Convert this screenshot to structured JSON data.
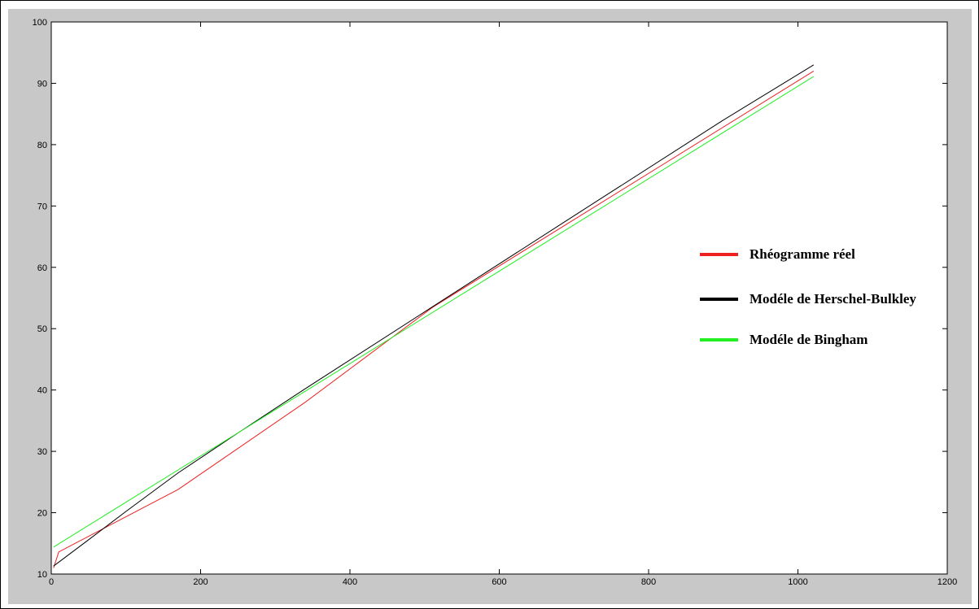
{
  "chart_data": {
    "type": "line",
    "xlim": [
      0,
      1200
    ],
    "ylim": [
      10,
      100
    ],
    "x_ticks": [
      0,
      200,
      400,
      600,
      800,
      1000,
      1200
    ],
    "y_ticks": [
      10,
      20,
      30,
      40,
      50,
      60,
      70,
      80,
      90,
      100
    ],
    "x_tick_labels": [
      "0",
      "200",
      "400",
      "600",
      "800",
      "1000",
      "1200"
    ],
    "y_tick_labels": [
      "10",
      "20",
      "30",
      "40",
      "50",
      "60",
      "70",
      "80",
      "90",
      "100"
    ],
    "grid": false,
    "legend_position": "right",
    "series": [
      {
        "name": "Rhéogramme réel",
        "color": "#ee2020",
        "x": [
          3,
          10,
          170,
          340,
          511,
          1021
        ],
        "y": [
          11.0,
          13.6,
          23.8,
          38.0,
          53.5,
          92.0
        ]
      },
      {
        "name": "Modéle de Herschel-Bulkley",
        "color": "#000000",
        "x": [
          3,
          50,
          100,
          170,
          250,
          340,
          511,
          700,
          900,
          1021
        ],
        "y": [
          11.3,
          15.6,
          20.2,
          26.5,
          33.0,
          40.2,
          53.6,
          68.4,
          84.0,
          93.0
        ]
      },
      {
        "name": "Modéle de Bingham",
        "color": "#22ee22",
        "x": [
          3,
          1021
        ],
        "y": [
          14.4,
          91.1
        ]
      }
    ]
  }
}
